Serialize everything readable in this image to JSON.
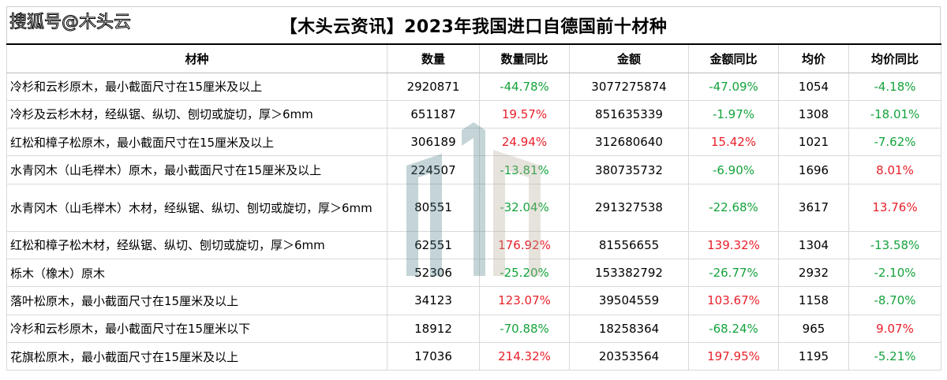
{
  "watermark": "搜狐号@木头云",
  "title": "【木头云资讯】2023年我国进口自德国前十材种",
  "columns": [
    "材种",
    "数量",
    "数量同比",
    "金额",
    "金额同比",
    "均价",
    "均价同比"
  ],
  "rows": [
    {
      "name": "冷杉和云杉原木，最小截面尺寸在15厘米及以上",
      "qty": "2920871",
      "qty_yoy": "-44.78%",
      "amount": "3077275874",
      "amount_yoy": "-47.09%",
      "price": "1054",
      "price_yoy": "-4.18%"
    },
    {
      "name": "冷杉及云杉木材，经纵锯、纵切、刨切或旋切，厚＞6mm",
      "qty": "651187",
      "qty_yoy": "19.57%",
      "amount": "851635339",
      "amount_yoy": "-1.97%",
      "price": "1308",
      "price_yoy": "-18.01%"
    },
    {
      "name": "红松和樟子松原木，最小截面尺寸在15厘米及以上",
      "qty": "306189",
      "qty_yoy": "24.94%",
      "amount": "312680640",
      "amount_yoy": "15.42%",
      "price": "1021",
      "price_yoy": "-7.62%"
    },
    {
      "name": "水青冈木（山毛榉木）原木，最小截面尺寸在15厘米及以上",
      "qty": "224507",
      "qty_yoy": "-13.81%",
      "amount": "380735732",
      "amount_yoy": "-6.90%",
      "price": "1696",
      "price_yoy": "8.01%"
    },
    {
      "name": "水青冈木（山毛榉木）木材，经纵锯、纵切、刨切或旋切，厚＞6mm",
      "qty": "80551",
      "qty_yoy": "-32.04%",
      "amount": "291327538",
      "amount_yoy": "-22.68%",
      "price": "3617",
      "price_yoy": "13.76%"
    },
    {
      "name": "红松和樟子松木材，经纵锯、纵切、刨切或旋切，厚＞6mm",
      "qty": "62551",
      "qty_yoy": "176.92%",
      "amount": "81556655",
      "amount_yoy": "139.32%",
      "price": "1304",
      "price_yoy": "-13.58%"
    },
    {
      "name": "栎木（橡木）原木",
      "qty": "52306",
      "qty_yoy": "-25.20%",
      "amount": "153382792",
      "amount_yoy": "-26.77%",
      "price": "2932",
      "price_yoy": "-2.10%"
    },
    {
      "name": "落叶松原木，最小截面尺寸在15厘米及以上",
      "qty": "34123",
      "qty_yoy": "123.07%",
      "amount": "39504559",
      "amount_yoy": "103.67%",
      "price": "1158",
      "price_yoy": "-8.70%"
    },
    {
      "name": "冷杉和云杉原木，最小截面尺寸在15厘米以下",
      "qty": "18912",
      "qty_yoy": "-70.88%",
      "amount": "18258364",
      "amount_yoy": "-68.24%",
      "price": "965",
      "price_yoy": "9.07%"
    },
    {
      "name": "花旗松原木，最小截面尺寸在15厘米及以上",
      "qty": "17036",
      "qty_yoy": "214.32%",
      "amount": "20353564",
      "amount_yoy": "197.95%",
      "price": "1195",
      "price_yoy": "-5.21%"
    }
  ],
  "colors": {
    "negative": "#14a33c",
    "positive": "#e8202a",
    "logo_left": "#4e7f86",
    "logo_right": "#b4a996"
  }
}
